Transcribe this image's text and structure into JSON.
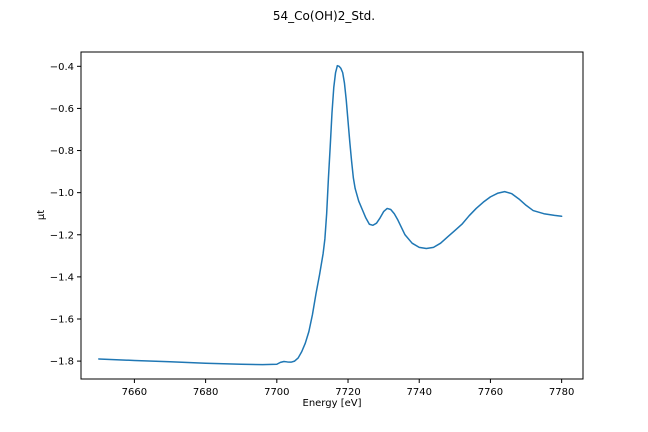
{
  "chart_data": {
    "type": "line",
    "title": "54_Co(OH)2_Std.",
    "xlabel": "Energy [eV]",
    "ylabel": "μt",
    "xlim": [
      7645,
      7786
    ],
    "ylim": [
      -1.885,
      -0.332
    ],
    "xticks": [
      7660,
      7680,
      7700,
      7720,
      7740,
      7760,
      7780
    ],
    "yticks": [
      -1.8,
      -1.6,
      -1.4,
      -1.2,
      -1.0,
      -0.8,
      -0.6,
      -0.4
    ],
    "xtick_labels": [
      "7660",
      "7680",
      "7700",
      "7720",
      "7740",
      "7760",
      "7780"
    ],
    "ytick_labels": [
      "−1.8",
      "−1.6",
      "−1.4",
      "−1.2",
      "−1.0",
      "−0.8",
      "−0.6",
      "−0.4"
    ],
    "grid": false,
    "line_color": "#1f77b4",
    "series": [
      {
        "x": [
          7650,
          7660,
          7670,
          7680,
          7690,
          7696,
          7700,
          7701,
          7702,
          7703,
          7704,
          7705,
          7706,
          7707,
          7708,
          7709,
          7710,
          7711,
          7712,
          7713,
          7713.5,
          7714,
          7714.5,
          7715,
          7715.5,
          7716,
          7716.5,
          7717,
          7717.5,
          7718,
          7718.5,
          7719,
          7719.5,
          7720,
          7720.5,
          7721,
          7721.5,
          7722,
          7723,
          7724,
          7725,
          7726,
          7727,
          7728,
          7729,
          7730,
          7731,
          7732,
          7733,
          7734,
          7735,
          7736,
          7738,
          7740,
          7742,
          7744,
          7746,
          7748,
          7750,
          7752,
          7754,
          7756,
          7758,
          7760,
          7762,
          7764,
          7766,
          7768,
          7770,
          7772,
          7775,
          7778,
          7780
        ],
        "y": [
          -1.79,
          -1.797,
          -1.803,
          -1.81,
          -1.815,
          -1.817,
          -1.815,
          -1.806,
          -1.802,
          -1.804,
          -1.805,
          -1.8,
          -1.785,
          -1.755,
          -1.715,
          -1.66,
          -1.58,
          -1.48,
          -1.39,
          -1.29,
          -1.22,
          -1.1,
          -0.93,
          -0.78,
          -0.62,
          -0.5,
          -0.43,
          -0.397,
          -0.4,
          -0.41,
          -0.43,
          -0.48,
          -0.56,
          -0.66,
          -0.76,
          -0.85,
          -0.93,
          -0.98,
          -1.04,
          -1.08,
          -1.12,
          -1.15,
          -1.155,
          -1.145,
          -1.12,
          -1.09,
          -1.075,
          -1.08,
          -1.1,
          -1.13,
          -1.165,
          -1.2,
          -1.24,
          -1.26,
          -1.265,
          -1.26,
          -1.24,
          -1.21,
          -1.18,
          -1.15,
          -1.11,
          -1.075,
          -1.045,
          -1.02,
          -1.003,
          -0.995,
          -1.005,
          -1.03,
          -1.06,
          -1.085,
          -1.1,
          -1.108,
          -1.112
        ]
      }
    ]
  }
}
